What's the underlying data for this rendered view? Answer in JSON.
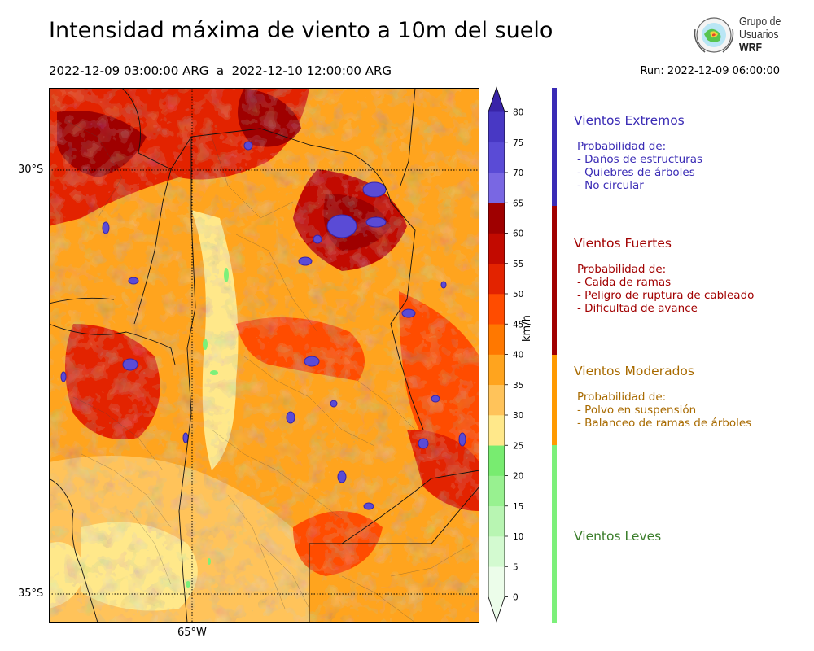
{
  "header": {
    "title": "Intensidad máxima de viento a 10m del suelo",
    "period": "2022-12-09 03:00:00 ARG  a  2022-12-10 12:00:00 ARG",
    "run": "Run: 2022-12-09 06:00:00"
  },
  "logo": {
    "line1": "Grupo de",
    "line2": "Usuarios",
    "line3": "WRF"
  },
  "map": {
    "lat_labels": [
      "30°S",
      "35°S"
    ],
    "lon_labels": [
      "65°W"
    ],
    "extreme_color": "#5a4bd6",
    "low_color": "#7cf07a"
  },
  "colorbar": {
    "unit": "km/h",
    "ticks": [
      "0",
      "5",
      "10",
      "15",
      "20",
      "25",
      "30",
      "35",
      "40",
      "45",
      "50",
      "55",
      "60",
      "65",
      "70",
      "75",
      "80"
    ],
    "colors": [
      "#ecfdea",
      "#d3fad0",
      "#b8f5b2",
      "#98f190",
      "#78ec70",
      "#ffe88a",
      "#ffc35a",
      "#ffa41e",
      "#ff7800",
      "#ff4c00",
      "#e32300",
      "#c20a00",
      "#9f0000",
      "#7967e3",
      "#5a4bd6",
      "#4838c4",
      "#3924a8"
    ]
  },
  "categories": [
    {
      "title": "Vientos Extremos",
      "color": "#3a2bb5",
      "bar_color": "#3a2bb5",
      "intro": "Probabilidad de:",
      "items": [
        "- Daños de estructuras",
        "- Quiebres de árboles",
        "- No circular"
      ]
    },
    {
      "title": "Vientos Fuertes",
      "color": "#a10000",
      "bar_color": "#a10000",
      "intro": "Probabilidad de:",
      "items": [
        "- Caida de ramas",
        "- Peligro de ruptura de cableado",
        "- Dificultad de avance"
      ]
    },
    {
      "title": "Vientos Moderados",
      "color": "#a86a00",
      "bar_color": "#ff9a00",
      "intro": "Probabilidad de:",
      "items": [
        "- Polvo en suspensión",
        "- Balanceo de ramas de árboles"
      ]
    },
    {
      "title": "Vientos Leves",
      "color": "#3a7d2a",
      "bar_color": "#7cf07a",
      "intro": "",
      "items": []
    }
  ]
}
